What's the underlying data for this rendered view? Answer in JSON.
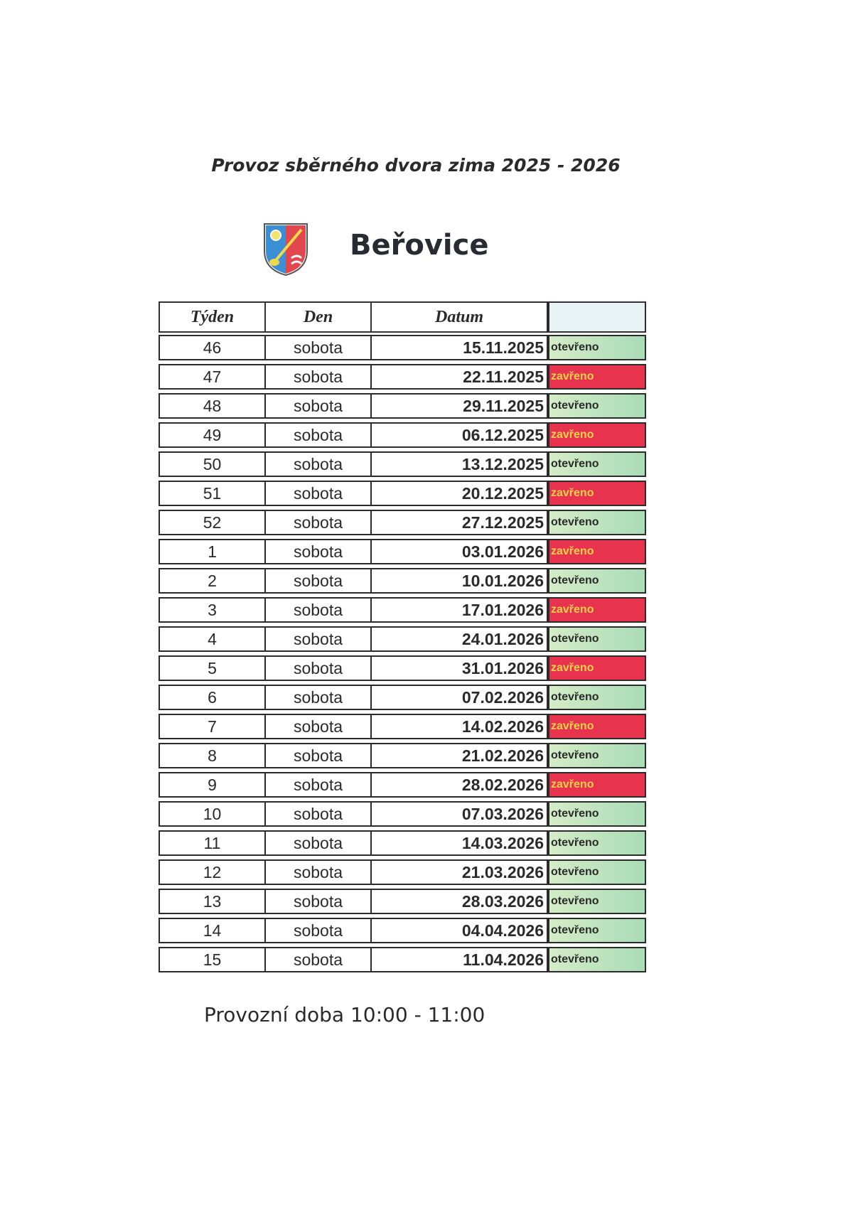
{
  "title": "Provoz sběrného dvora zima 2025 - 2026",
  "village": "Beřovice",
  "table": {
    "headers": [
      "Týden",
      "Den",
      "Datum",
      ""
    ],
    "rows": [
      {
        "week": "46",
        "day": "sobota",
        "date": "15.11.2025",
        "status": "otevřeno",
        "open": true
      },
      {
        "week": "47",
        "day": "sobota",
        "date": "22.11.2025",
        "status": "zavřeno",
        "open": false
      },
      {
        "week": "48",
        "day": "sobota",
        "date": "29.11.2025",
        "status": "otevřeno",
        "open": true
      },
      {
        "week": "49",
        "day": "sobota",
        "date": "06.12.2025",
        "status": "zavřeno",
        "open": false
      },
      {
        "week": "50",
        "day": "sobota",
        "date": "13.12.2025",
        "status": "otevřeno",
        "open": true
      },
      {
        "week": "51",
        "day": "sobota",
        "date": "20.12.2025",
        "status": "zavřeno",
        "open": false
      },
      {
        "week": "52",
        "day": "sobota",
        "date": "27.12.2025",
        "status": "otevřeno",
        "open": true
      },
      {
        "week": "1",
        "day": "sobota",
        "date": "03.01.2026",
        "status": "zavřeno",
        "open": false
      },
      {
        "week": "2",
        "day": "sobota",
        "date": "10.01.2026",
        "status": "otevřeno",
        "open": true
      },
      {
        "week": "3",
        "day": "sobota",
        "date": "17.01.2026",
        "status": "zavřeno",
        "open": false
      },
      {
        "week": "4",
        "day": "sobota",
        "date": "24.01.2026",
        "status": "otevřeno",
        "open": true
      },
      {
        "week": "5",
        "day": "sobota",
        "date": "31.01.2026",
        "status": "zavřeno",
        "open": false
      },
      {
        "week": "6",
        "day": "sobota",
        "date": "07.02.2026",
        "status": "otevřeno",
        "open": true
      },
      {
        "week": "7",
        "day": "sobota",
        "date": "14.02.2026",
        "status": "zavřeno",
        "open": false
      },
      {
        "week": "8",
        "day": "sobota",
        "date": "21.02.2026",
        "status": "otevřeno",
        "open": true
      },
      {
        "week": "9",
        "day": "sobota",
        "date": "28.02.2026",
        "status": "zavřeno",
        "open": false
      },
      {
        "week": "10",
        "day": "sobota",
        "date": "07.03.2026",
        "status": "otevřeno",
        "open": true
      },
      {
        "week": "11",
        "day": "sobota",
        "date": "14.03.2026",
        "status": "otevřeno",
        "open": true
      },
      {
        "week": "12",
        "day": "sobota",
        "date": "21.03.2026",
        "status": "otevřeno",
        "open": true
      },
      {
        "week": "13",
        "day": "sobota",
        "date": "28.03.2026",
        "status": "otevřeno",
        "open": true
      },
      {
        "week": "14",
        "day": "sobota",
        "date": "04.04.2026",
        "status": "otevřeno",
        "open": true
      },
      {
        "week": "15",
        "day": "sobota",
        "date": "11.04.2026",
        "status": "otevřeno",
        "open": true
      }
    ]
  },
  "footer": "Provozní doba 10:00 - 11:00",
  "colors": {
    "open": "#b8e2bd",
    "closed": "#e8334f",
    "closed_text": "#f4d24a"
  },
  "icons": {
    "crest": "coat-of-arms-icon"
  }
}
